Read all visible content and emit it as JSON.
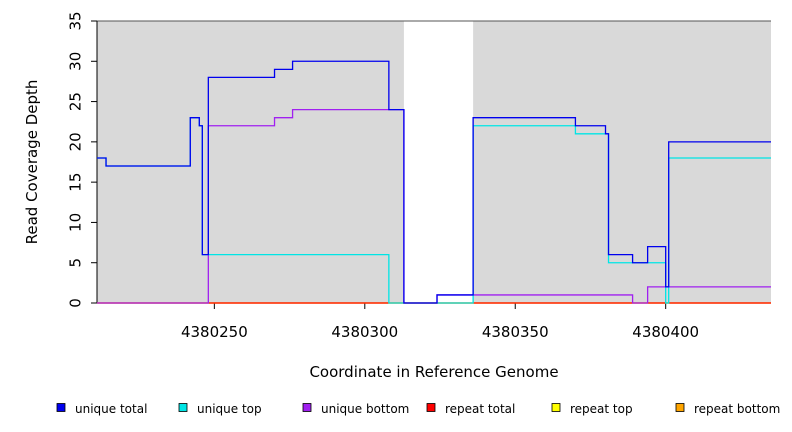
{
  "chart_data": {
    "type": "line",
    "step": true,
    "title": "",
    "xlabel": "Coordinate in Reference Genome",
    "ylabel": "Read Coverage Depth",
    "xlim": [
      4380211,
      4380435
    ],
    "ylim": [
      0,
      35
    ],
    "x_ticks": [
      4380250,
      4380300,
      4380350,
      4380400
    ],
    "y_ticks": [
      0,
      5,
      10,
      15,
      20,
      25,
      30,
      35
    ],
    "grid": false,
    "background_color": "#d9d9d9",
    "uncovered_regions": [
      [
        4380313,
        4380336
      ]
    ],
    "legend_position": "bottom",
    "series": [
      {
        "name": "unique total",
        "color": "#0000ee",
        "points": [
          [
            4380211,
            18
          ],
          [
            4380214,
            17
          ],
          [
            4380242,
            23
          ],
          [
            4380245,
            22
          ],
          [
            4380246,
            6
          ],
          [
            4380248,
            28
          ],
          [
            4380270,
            29
          ],
          [
            4380276,
            30
          ],
          [
            4380308,
            24
          ],
          [
            4380313,
            0
          ],
          [
            4380324,
            1
          ],
          [
            4380336,
            23
          ],
          [
            4380370,
            22
          ],
          [
            4380380,
            21
          ],
          [
            4380381,
            6
          ],
          [
            4380389,
            5
          ],
          [
            4380394,
            7
          ],
          [
            4380400,
            2
          ],
          [
            4380401,
            20
          ],
          [
            4380435,
            20
          ]
        ]
      },
      {
        "name": "unique top",
        "color": "#00e5e5",
        "points": [
          [
            4380211,
            18
          ],
          [
            4380214,
            17
          ],
          [
            4380242,
            23
          ],
          [
            4380245,
            22
          ],
          [
            4380246,
            6
          ],
          [
            4380308,
            0
          ],
          [
            4380336,
            22
          ],
          [
            4380370,
            21
          ],
          [
            4380380,
            21
          ],
          [
            4380381,
            5
          ],
          [
            4380400,
            0
          ],
          [
            4380401,
            18
          ],
          [
            4380435,
            18
          ]
        ]
      },
      {
        "name": "unique bottom",
        "color": "#a020f0",
        "points": [
          [
            4380211,
            0
          ],
          [
            4380248,
            22
          ],
          [
            4380270,
            23
          ],
          [
            4380276,
            24
          ],
          [
            4380313,
            0
          ],
          [
            4380324,
            1
          ],
          [
            4380389,
            0
          ],
          [
            4380394,
            2
          ],
          [
            4380435,
            2
          ]
        ]
      },
      {
        "name": "repeat total",
        "color": "#ff0000",
        "points": [
          [
            4380211,
            0
          ],
          [
            4380435,
            0
          ]
        ]
      },
      {
        "name": "repeat top",
        "color": "#ffff00",
        "points": [
          [
            4380211,
            0
          ],
          [
            4380435,
            0
          ]
        ]
      },
      {
        "name": "repeat bottom",
        "color": "#ffa500",
        "points": [
          [
            4380211,
            0
          ],
          [
            4380435,
            0
          ]
        ]
      }
    ]
  }
}
